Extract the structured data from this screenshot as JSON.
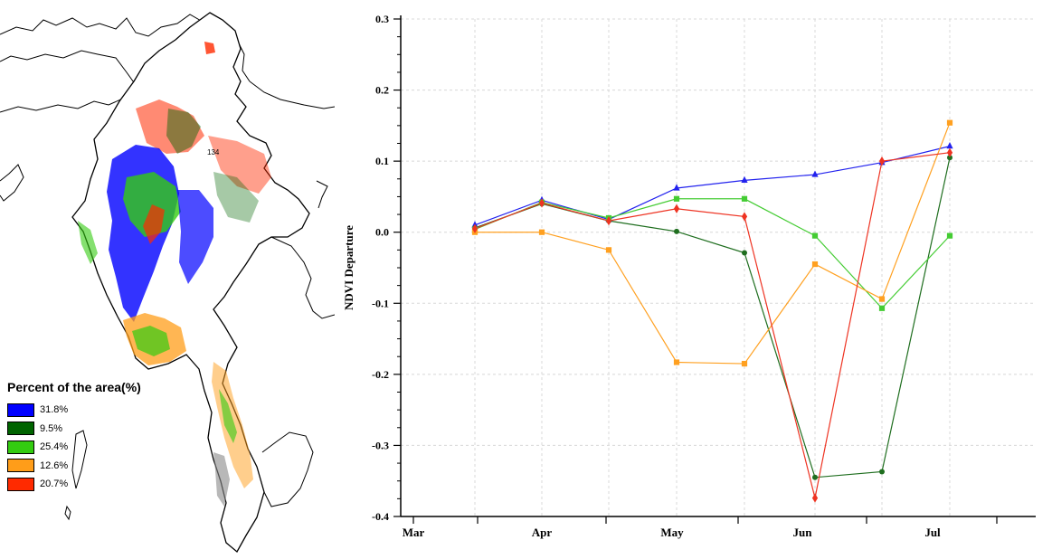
{
  "map": {
    "legend_title": "Percent of the area(%)",
    "legend_items": [
      {
        "label": "31.8%",
        "color": "#0000ff"
      },
      {
        "label": "9.5%",
        "color": "#006400"
      },
      {
        "label": "25.4%",
        "color": "#33cc11"
      },
      {
        "label": "12.6%",
        "color": "#ff9d19"
      },
      {
        "label": "20.7%",
        "color": "#ff2a00"
      }
    ],
    "region_label": "134"
  },
  "chart_data": {
    "type": "line",
    "title": "",
    "xlabel": "",
    "ylabel": "NDVI Departure",
    "ylim": [
      -0.4,
      0.3
    ],
    "yticks": [
      "0.3",
      "0.2",
      "0.1",
      "0.0",
      "-0.1",
      "-0.2",
      "-0.3",
      "-0.4"
    ],
    "xticks": [
      "Mar",
      "Apr",
      "May",
      "Jun",
      "Jul"
    ],
    "grid": true,
    "series": [
      {
        "color": "#2222ee",
        "marker": "triangle",
        "x": [
          "Mar-3",
          "Apr-1",
          "Apr-3",
          "May-1",
          "May-3",
          "Jun-1",
          "Jun-3",
          "Jul-1"
        ],
        "values": [
          0.01,
          0.045,
          0.018,
          0.062,
          0.073,
          0.081,
          0.098,
          0.121
        ]
      },
      {
        "color": "#1f6e1f",
        "marker": "circle",
        "x": [
          "Mar-3",
          "Apr-1",
          "Apr-3",
          "May-1",
          "May-3",
          "Jun-1",
          "Jun-3",
          "Jul-1"
        ],
        "values": [
          0.006,
          0.04,
          0.016,
          0.001,
          -0.029,
          -0.345,
          -0.337,
          0.105
        ]
      },
      {
        "color": "#44cc33",
        "marker": "square",
        "x": [
          "Mar-3",
          "Apr-1",
          "Apr-3",
          "May-1",
          "May-3",
          "Jun-1",
          "Jun-3",
          "Jul-1"
        ],
        "values": [
          0.004,
          0.042,
          0.02,
          0.047,
          0.047,
          -0.005,
          -0.107,
          -0.005
        ]
      },
      {
        "color": "#ffa020",
        "marker": "square",
        "x": [
          "Mar-3",
          "Apr-1",
          "Apr-3",
          "May-1",
          "May-3",
          "Jun-1",
          "Jun-3",
          "Jul-1"
        ],
        "values": [
          0.0,
          0.0,
          -0.025,
          -0.183,
          -0.185,
          -0.045,
          -0.094,
          0.154
        ]
      },
      {
        "color": "#ee3322",
        "marker": "diamond",
        "x": [
          "Mar-3",
          "Apr-1",
          "Apr-3",
          "May-1",
          "May-3",
          "Jun-1",
          "Jun-3",
          "Jul-1"
        ],
        "values": [
          0.005,
          0.041,
          0.016,
          0.033,
          0.022,
          -0.374,
          0.1,
          0.112
        ]
      }
    ]
  }
}
